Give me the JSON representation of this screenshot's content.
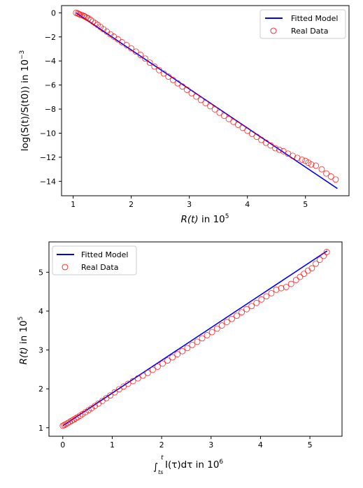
{
  "chart_data": [
    {
      "type": "scatter",
      "xlabel": "R(t) in 10^5",
      "ylabel": "log(S(t)/S(t0)) in 10^-3",
      "xlim": [
        0.8,
        5.75
      ],
      "ylim": [
        -15.2,
        0.6
      ],
      "xticks": [
        1,
        2,
        3,
        4,
        5
      ],
      "yticks": [
        0,
        -2,
        -4,
        -6,
        -8,
        -10,
        -12,
        -14
      ],
      "legend": {
        "placement": "top-right",
        "entries": [
          "Fitted Model",
          "Real Data"
        ]
      },
      "grid": false,
      "series": [
        {
          "name": "Fitted Model",
          "kind": "line",
          "color": "#0000ff",
          "x": [
            1.05,
            5.55
          ],
          "y": [
            0.0,
            -14.6
          ]
        },
        {
          "name": "Real Data",
          "kind": "scatter",
          "color": "#ff0000",
          "x": [
            1.05,
            1.08,
            1.1,
            1.12,
            1.15,
            1.18,
            1.2,
            1.23,
            1.26,
            1.3,
            1.34,
            1.38,
            1.42,
            1.47,
            1.52,
            1.58,
            1.64,
            1.7,
            1.77,
            1.84,
            1.92,
            2.0,
            2.08,
            2.16,
            2.24,
            2.32,
            2.4,
            2.48,
            2.56,
            2.64,
            2.72,
            2.8,
            2.88,
            2.96,
            3.04,
            3.12,
            3.2,
            3.28,
            3.36,
            3.44,
            3.52,
            3.6,
            3.68,
            3.76,
            3.84,
            3.92,
            4.0,
            4.08,
            4.16,
            4.24,
            4.32,
            4.4,
            4.48,
            4.55,
            4.62,
            4.7,
            4.78,
            4.86,
            4.94,
            5.0,
            5.05,
            5.1,
            5.18,
            5.28,
            5.36,
            5.44,
            5.52
          ],
          "y": [
            0.0,
            -0.05,
            -0.1,
            -0.15,
            -0.2,
            -0.25,
            -0.3,
            -0.38,
            -0.46,
            -0.58,
            -0.72,
            -0.86,
            -1.0,
            -1.18,
            -1.36,
            -1.56,
            -1.78,
            -1.98,
            -2.2,
            -2.44,
            -2.68,
            -2.95,
            -3.22,
            -3.5,
            -3.8,
            -4.14,
            -4.46,
            -4.76,
            -5.04,
            -5.3,
            -5.58,
            -5.86,
            -6.12,
            -6.4,
            -6.68,
            -6.96,
            -7.24,
            -7.5,
            -7.76,
            -8.02,
            -8.3,
            -8.56,
            -8.82,
            -9.06,
            -9.3,
            -9.56,
            -9.8,
            -10.06,
            -10.3,
            -10.56,
            -10.8,
            -11.02,
            -11.25,
            -11.38,
            -11.5,
            -11.7,
            -11.88,
            -12.05,
            -12.2,
            -12.3,
            -12.45,
            -12.6,
            -12.7,
            -13.0,
            -13.35,
            -13.6,
            -13.85
          ]
        }
      ]
    },
    {
      "type": "scatter",
      "xlabel": "∫ I(τ)dτ in 10^6",
      "ylabel": "R(t) in 10^5",
      "xlim": [
        -0.28,
        5.65
      ],
      "ylim": [
        0.78,
        5.78
      ],
      "xticks": [
        0,
        1,
        2,
        3,
        4,
        5
      ],
      "yticks": [
        1,
        2,
        3,
        4,
        5
      ],
      "legend": {
        "placement": "top-left",
        "entries": [
          "Fitted Model",
          "Real Data"
        ]
      },
      "grid": false,
      "series": [
        {
          "name": "Fitted Model",
          "kind": "line",
          "color": "#0000ff",
          "x": [
            0.0,
            5.35
          ],
          "y": [
            1.05,
            5.55
          ]
        },
        {
          "name": "Real Data",
          "kind": "scatter",
          "color": "#ff0000",
          "x": [
            0.0,
            0.03,
            0.06,
            0.1,
            0.14,
            0.18,
            0.22,
            0.26,
            0.3,
            0.35,
            0.4,
            0.46,
            0.52,
            0.58,
            0.65,
            0.72,
            0.8,
            0.88,
            0.96,
            1.05,
            1.14,
            1.23,
            1.32,
            1.42,
            1.52,
            1.62,
            1.72,
            1.82,
            1.92,
            2.02,
            2.12,
            2.22,
            2.32,
            2.42,
            2.52,
            2.62,
            2.72,
            2.82,
            2.92,
            3.02,
            3.12,
            3.22,
            3.32,
            3.42,
            3.52,
            3.62,
            3.72,
            3.82,
            3.92,
            4.02,
            4.12,
            4.22,
            4.32,
            4.42,
            4.52,
            4.62,
            4.72,
            4.8,
            4.88,
            4.96,
            5.04,
            5.12,
            5.2,
            5.28,
            5.34
          ],
          "y": [
            1.05,
            1.07,
            1.09,
            1.12,
            1.15,
            1.18,
            1.21,
            1.24,
            1.27,
            1.31,
            1.35,
            1.4,
            1.45,
            1.5,
            1.56,
            1.62,
            1.69,
            1.76,
            1.83,
            1.91,
            1.99,
            2.06,
            2.13,
            2.2,
            2.27,
            2.34,
            2.41,
            2.49,
            2.57,
            2.65,
            2.73,
            2.81,
            2.89,
            2.97,
            3.05,
            3.13,
            3.21,
            3.3,
            3.38,
            3.46,
            3.55,
            3.63,
            3.72,
            3.8,
            3.88,
            3.97,
            4.05,
            4.13,
            4.21,
            4.3,
            4.38,
            4.46,
            4.55,
            4.59,
            4.62,
            4.7,
            4.8,
            4.88,
            4.96,
            5.04,
            5.1,
            5.22,
            5.32,
            5.42,
            5.52
          ]
        }
      ]
    }
  ],
  "ui": {
    "chart1": {
      "ylabel_text": "log(S(t)/S(t0)) in 10",
      "ylabel_exp": "−3",
      "xlabel_var": "R(t)",
      "xlabel_text": " in 10",
      "xlabel_exp": "5",
      "legend_line": "Fitted Model",
      "legend_marker": "Real Data"
    },
    "chart2": {
      "ylabel_var": "R(t)",
      "ylabel_text": " in 10",
      "ylabel_exp": "5",
      "xlabel_int": "∫",
      "xlabel_upper": "t",
      "xlabel_lower": "ts",
      "xlabel_text": "I(τ)dτ in 10",
      "xlabel_exp": "6",
      "legend_line": "Fitted Model",
      "legend_marker": "Real Data"
    }
  }
}
